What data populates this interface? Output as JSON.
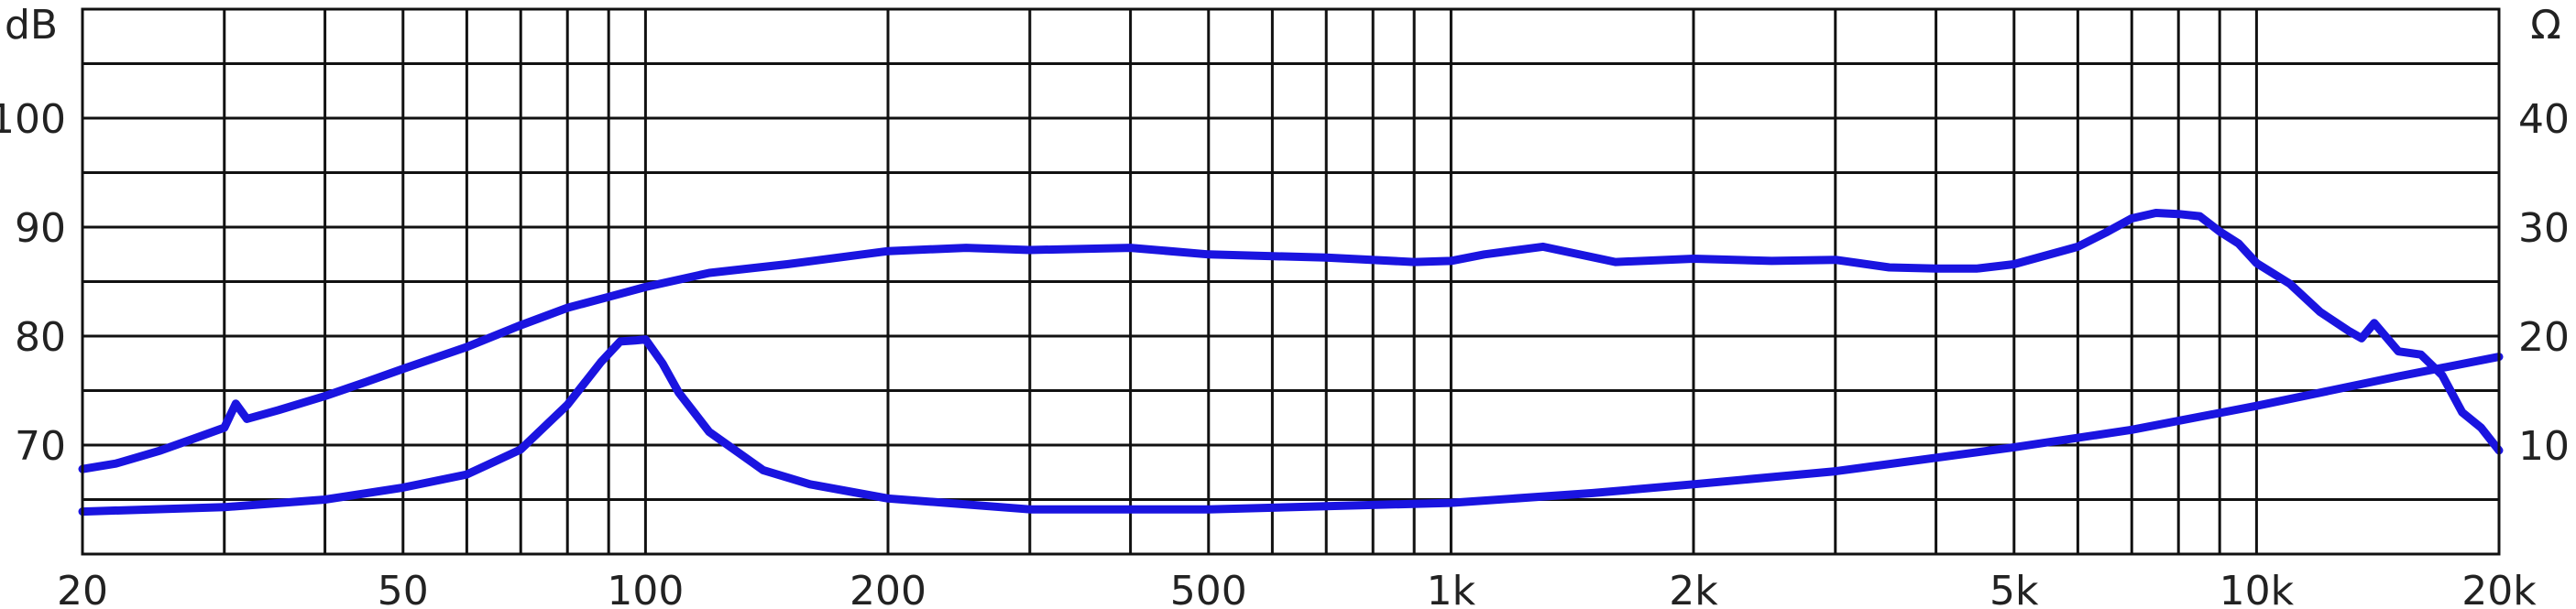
{
  "chart_data": {
    "type": "line",
    "title": "",
    "x_scale": "log",
    "xlim": [
      20,
      20000
    ],
    "grid": true,
    "legend": "none",
    "left_axis": {
      "unit_label": "dB",
      "ylim": [
        60,
        110
      ],
      "ticks": [
        70,
        80,
        90,
        100
      ],
      "tick_labels": [
        "70",
        "80",
        "90",
        "100"
      ]
    },
    "right_axis": {
      "unit_label": "Ω",
      "ylim": [
        0,
        50
      ],
      "ticks": [
        10,
        20,
        30,
        40
      ],
      "tick_labels": [
        "10",
        "20",
        "30",
        "40"
      ]
    },
    "x_ticks": [
      20,
      50,
      100,
      200,
      500,
      1000,
      2000,
      5000,
      10000,
      20000
    ],
    "x_tick_labels": [
      "20",
      "50",
      "100",
      "200",
      "500",
      "1k",
      "2k",
      "5k",
      "10k",
      "20k"
    ],
    "series": [
      {
        "axis": "left",
        "color": "#1a14e0",
        "x": [
          20,
          22,
          25,
          28,
          30,
          31,
          32,
          35,
          40,
          45,
          50,
          60,
          70,
          80,
          90,
          100,
          120,
          150,
          200,
          250,
          300,
          400,
          500,
          700,
          900,
          1000,
          1100,
          1300,
          1600,
          2000,
          2500,
          3000,
          3500,
          4000,
          4500,
          5000,
          6000,
          6500,
          7000,
          7500,
          8000,
          8500,
          9000,
          9500,
          10000,
          11000,
          12000,
          13000,
          13500,
          14000,
          15000,
          16000,
          17000,
          18000,
          19000,
          20000
        ],
        "values": [
          67.8,
          68.3,
          69.5,
          70.8,
          71.6,
          73.8,
          72.4,
          73.2,
          74.5,
          75.8,
          77,
          79,
          81,
          82.6,
          83.6,
          84.5,
          85.8,
          86.6,
          87.8,
          88.1,
          87.9,
          88.1,
          87.5,
          87.2,
          86.8,
          86.9,
          87.5,
          88.2,
          86.8,
          87.1,
          86.9,
          87,
          86.3,
          86.2,
          86.2,
          86.6,
          88.2,
          89.5,
          90.8,
          91.3,
          91.2,
          91,
          89.6,
          88.5,
          86.7,
          84.8,
          82.2,
          80.5,
          79.8,
          81.2,
          78.6,
          78.3,
          76.4,
          73,
          71.6,
          69.5
        ]
      },
      {
        "axis": "right",
        "color": "#1a14e0",
        "x": [
          20,
          30,
          40,
          50,
          60,
          70,
          80,
          88,
          93,
          97,
          100,
          105,
          110,
          120,
          140,
          160,
          200,
          300,
          500,
          1000,
          1500,
          2000,
          3000,
          5000,
          7000,
          10000,
          15000,
          20000
        ],
        "values": [
          3.9,
          4.3,
          5,
          6.1,
          7.3,
          9.6,
          13.7,
          17.6,
          19.5,
          19.6,
          19.7,
          17.5,
          14.8,
          11.2,
          7.7,
          6.4,
          5.1,
          4.1,
          4.1,
          4.7,
          5.6,
          6.4,
          7.6,
          9.8,
          11.4,
          13.6,
          16.3,
          18.1
        ]
      }
    ]
  }
}
